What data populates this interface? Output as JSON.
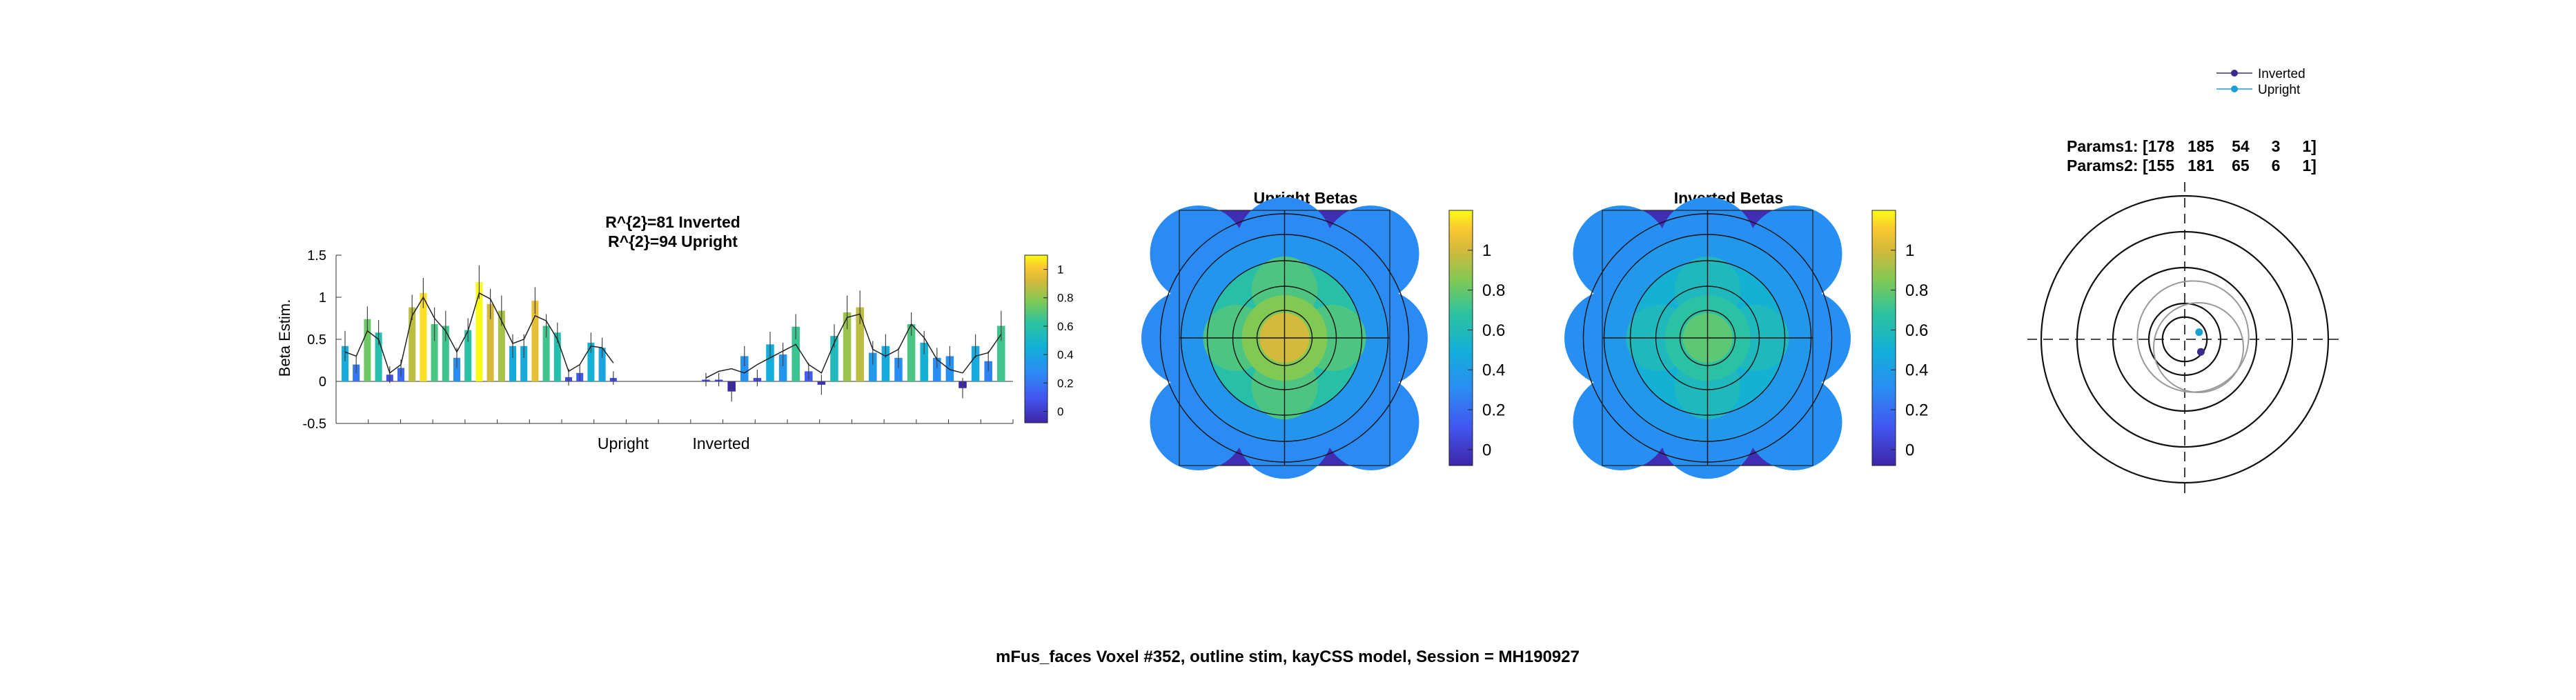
{
  "chart_data": [
    {
      "type": "bar",
      "title_line1": "R^{2}=81 Inverted",
      "title_line2": "R^{2}=94 Upright",
      "xlabel": "",
      "ylabel": "Beta Estim.",
      "ylim": [
        -0.5,
        1.5
      ],
      "yticks": [
        "1.5",
        "1",
        "0.5",
        "0",
        "-0.5"
      ],
      "group_labels": [
        "Upright",
        "Inverted"
      ],
      "colorbar_ticks": [
        "1",
        "0.8",
        "0.6",
        "0.4",
        "0.2",
        "0"
      ],
      "clim": [
        -0.08,
        1.1
      ],
      "upright_values": [
        0.42,
        0.2,
        0.74,
        0.58,
        0.08,
        0.16,
        0.88,
        1.05,
        0.68,
        0.66,
        0.28,
        0.61,
        1.18,
        0.92,
        0.84,
        0.42,
        0.42,
        0.96,
        0.66,
        0.58,
        0.05,
        0.1,
        0.46,
        0.4,
        0.04
      ],
      "upright_errors": [
        0.18,
        0.1,
        0.15,
        0.15,
        0.1,
        0.1,
        0.15,
        0.18,
        0.2,
        0.18,
        0.12,
        0.14,
        0.2,
        0.18,
        0.18,
        0.14,
        0.14,
        0.16,
        0.14,
        0.12,
        0.1,
        0.1,
        0.12,
        0.12,
        0.08
      ],
      "upright_fit": [
        0.35,
        0.3,
        0.6,
        0.5,
        0.1,
        0.2,
        0.78,
        1.0,
        0.75,
        0.6,
        0.35,
        0.6,
        1.05,
        0.98,
        0.72,
        0.45,
        0.5,
        0.78,
        0.72,
        0.5,
        0.12,
        0.2,
        0.42,
        0.4,
        0.22
      ],
      "inverted_values": [
        0.02,
        0.02,
        -0.12,
        0.3,
        0.04,
        0.44,
        0.32,
        0.65,
        0.12,
        -0.04,
        0.54,
        0.82,
        0.88,
        0.34,
        0.42,
        0.28,
        0.68,
        0.46,
        0.28,
        0.3,
        -0.08,
        0.42,
        0.24,
        0.66
      ],
      "inverted_errors": [
        0.08,
        0.08,
        0.12,
        0.12,
        0.1,
        0.15,
        0.14,
        0.15,
        0.1,
        0.12,
        0.14,
        0.2,
        0.2,
        0.14,
        0.14,
        0.12,
        0.14,
        0.14,
        0.12,
        0.12,
        0.12,
        0.14,
        0.12,
        0.18
      ],
      "inverted_fit": [
        0.04,
        0.12,
        0.15,
        0.1,
        0.2,
        0.28,
        0.36,
        0.44,
        0.2,
        0.1,
        0.46,
        0.76,
        0.8,
        0.38,
        0.3,
        0.38,
        0.68,
        0.52,
        0.26,
        0.14,
        0.1,
        0.3,
        0.34,
        0.56
      ]
    },
    {
      "type": "heatmap",
      "title": "Upright Betas",
      "colorbar_ticks": [
        "1",
        "0.8",
        "0.6",
        "0.4",
        "0.2",
        "0"
      ],
      "clim": [
        -0.08,
        1.2
      ],
      "peak": 1.0,
      "background": 0.3
    },
    {
      "type": "heatmap",
      "title": "Inverted Betas",
      "colorbar_ticks": [
        "1",
        "0.8",
        "0.6",
        "0.4",
        "0.2",
        "0"
      ],
      "clim": [
        -0.08,
        1.2
      ],
      "peak": 0.78,
      "background": 0.32
    },
    {
      "type": "scatter",
      "params1": "Params1: [178   185    54     3     1]",
      "params2": "Params2: [155   181    65     6     1]",
      "legend": [
        "Inverted",
        "Upright"
      ],
      "legend_placement": "top-right",
      "series": [
        {
          "name": "Inverted",
          "x": 0.45,
          "y": -0.35,
          "color": "#3b2a8c"
        },
        {
          "name": "Upright",
          "x": 0.4,
          "y": 0.2,
          "color": "#1a9fd6"
        }
      ]
    }
  ],
  "footer": {
    "caption": "mFus_faces Voxel #352, outline stim, kayCSS model, Session = MH190927"
  }
}
